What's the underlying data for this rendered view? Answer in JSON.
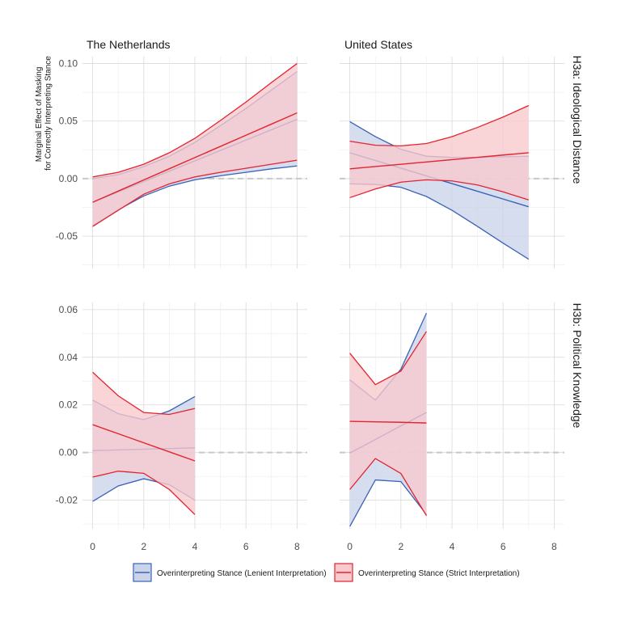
{
  "chart_data": {
    "type": "line",
    "y_axis_label": [
      "Marginal Effect of Masking",
      "for Correctly Interpreting Stance"
    ],
    "colors": {
      "lenient": "#3a62b6",
      "strict": "#e3232f",
      "lenient_fill": "#c9d4ea",
      "strict_fill": "#f8c9cd",
      "zero_line": "#c8c8c8"
    },
    "legend": {
      "position": "bottom",
      "entries": [
        {
          "key": "lenient",
          "label": "Overinterpreting Stance (Lenient Interpretation)"
        },
        {
          "key": "strict",
          "label": "Overinterpreting Stance (Strict Interpretation)"
        }
      ]
    },
    "columns": [
      "The Netherlands",
      "United States"
    ],
    "rows": [
      "H3a: Ideological Distance",
      "H3b: Political Knowledge"
    ],
    "x_ticks": [
      "0",
      "2",
      "4",
      "6",
      "8"
    ],
    "x_tick_values": [
      0,
      2,
      4,
      6,
      8
    ],
    "xlim": [
      -0.4,
      8.4
    ],
    "row_y": [
      {
        "ylim": [
          -0.078,
          0.106
        ],
        "tick_values": [
          -0.05,
          0,
          0.05,
          0.1
        ],
        "tick_labels": [
          "-0.05",
          "0.00",
          "0.05",
          "0.10"
        ]
      },
      {
        "ylim": [
          -0.032,
          0.063
        ],
        "tick_values": [
          -0.02,
          0,
          0.02,
          0.04,
          0.06
        ],
        "tick_labels": [
          "-0.02",
          "0.00",
          "0.02",
          "0.04",
          "0.06"
        ]
      }
    ],
    "panels": [
      {
        "row": 0,
        "col": 0,
        "name": "The Netherlands - H3a",
        "series": [
          {
            "key": "lenient",
            "x": [
              0,
              1,
              2,
              3,
              4,
              5,
              6,
              7,
              8
            ],
            "y": [
              -0.0205,
              -0.0115,
              -0.0025,
              0.0065,
              0.0155,
              0.0245,
              0.0335,
              0.0425,
              0.0515
            ],
            "lower": [
              -0.041,
              -0.027,
              -0.015,
              -0.0065,
              -0.001,
              0.0025,
              0.0055,
              0.0085,
              0.011
            ],
            "upper": [
              0.0,
              0.0035,
              0.0105,
              0.0195,
              0.0315,
              0.046,
              0.061,
              0.077,
              0.093
            ]
          },
          {
            "key": "strict",
            "x": [
              0,
              1,
              2,
              3,
              4,
              5,
              6,
              7,
              8
            ],
            "y": [
              -0.0205,
              -0.0108,
              -0.0011,
              0.0086,
              0.0183,
              0.028,
              0.0377,
              0.0474,
              0.0571
            ],
            "lower": [
              -0.0415,
              -0.0275,
              -0.0135,
              -0.0045,
              0.0015,
              0.0055,
              0.009,
              0.0125,
              0.016
            ],
            "upper": [
              0.0015,
              0.0055,
              0.0125,
              0.0225,
              0.035,
              0.0505,
              0.0665,
              0.0835,
              0.1
            ]
          }
        ]
      },
      {
        "row": 0,
        "col": 1,
        "name": "United States - H3a",
        "series": [
          {
            "key": "lenient",
            "x": [
              0,
              1,
              2,
              3,
              4,
              5,
              6,
              7
            ],
            "y": [
              0.0225,
              0.0158,
              0.0091,
              0.0024,
              -0.0043,
              -0.011,
              -0.0177,
              -0.0244
            ],
            "lower": [
              -0.0045,
              -0.005,
              -0.0075,
              -0.0155,
              -0.0275,
              -0.0415,
              -0.056,
              -0.07
            ],
            "upper": [
              0.0495,
              0.0365,
              0.0255,
              0.0195,
              0.0185,
              0.0185,
              0.019,
              0.0195
            ]
          },
          {
            "key": "strict",
            "x": [
              0,
              1,
              2,
              3,
              4,
              5,
              6,
              7
            ],
            "y": [
              0.0085,
              0.0105,
              0.0125,
              0.0145,
              0.0165,
              0.0185,
              0.0205,
              0.0225
            ],
            "lower": [
              -0.0165,
              -0.009,
              -0.003,
              -0.001,
              -0.002,
              -0.0055,
              -0.0115,
              -0.0185
            ],
            "upper": [
              0.0325,
              0.029,
              0.0285,
              0.0305,
              0.0365,
              0.0445,
              0.0535,
              0.0635
            ]
          }
        ]
      },
      {
        "row": 1,
        "col": 0,
        "name": "The Netherlands - H3b",
        "series": [
          {
            "key": "lenient",
            "x": [
              0,
              1,
              2,
              3,
              4
            ],
            "y": [
              0.0008,
              0.0011,
              0.0014,
              0.0017,
              0.002
            ],
            "lower": [
              -0.0205,
              -0.014,
              -0.011,
              -0.0135,
              -0.02
            ],
            "upper": [
              0.022,
              0.0163,
              0.0138,
              0.0175,
              0.0235
            ]
          },
          {
            "key": "strict",
            "x": [
              0,
              1,
              2,
              3,
              4
            ],
            "y": [
              0.0117,
              0.0079,
              0.0041,
              0.0003,
              -0.0035
            ],
            "lower": [
              -0.0103,
              -0.0078,
              -0.0087,
              -0.0155,
              -0.026
            ],
            "upper": [
              0.0337,
              0.0238,
              0.0168,
              0.016,
              0.0185
            ]
          }
        ]
      },
      {
        "row": 1,
        "col": 1,
        "name": "United States - H3b",
        "series": [
          {
            "key": "lenient",
            "x": [
              0,
              1,
              2,
              3
            ],
            "y": [
              -0.0002,
              0.0055,
              0.0112,
              0.0168
            ],
            "lower": [
              -0.031,
              -0.0115,
              -0.0122,
              -0.026
            ],
            "upper": [
              0.0305,
              0.022,
              0.035,
              0.0585
            ]
          },
          {
            "key": "strict",
            "x": [
              0,
              1,
              2,
              3
            ],
            "y": [
              0.0131,
              0.0129,
              0.0127,
              0.0124
            ],
            "lower": [
              -0.0155,
              -0.0025,
              -0.0088,
              -0.0265
            ],
            "upper": [
              0.0417,
              0.0285,
              0.0342,
              0.0508
            ]
          }
        ]
      }
    ]
  }
}
